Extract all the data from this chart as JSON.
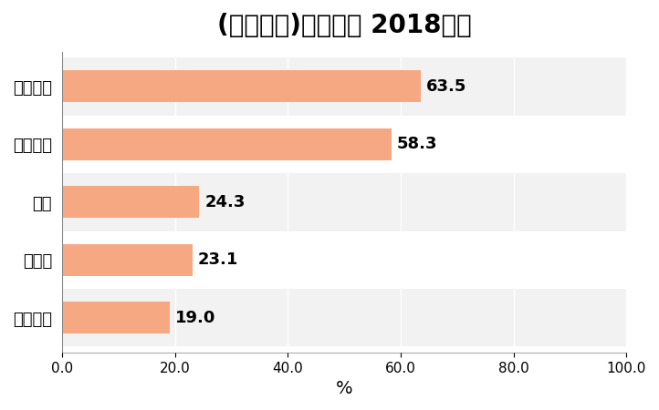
{
  "title": "(総合商社)資源割合 2018年度",
  "categories": [
    "住友商事",
    "伊藤忠",
    "丸紅",
    "三菱商事",
    "三井物産"
  ],
  "values": [
    19.0,
    23.1,
    24.3,
    58.3,
    63.5
  ],
  "bar_color": "#F5A882",
  "gap_color": "#D8D8D8",
  "left_wall_color": "#8C8C8C",
  "background_color": "#FFFFFF",
  "plot_bg_odd": "#F2F2F2",
  "plot_bg_even": "#FFFFFF",
  "label_color": "#000000",
  "xlabel": "%",
  "xlim": [
    0,
    100
  ],
  "xticks": [
    0.0,
    20.0,
    40.0,
    60.0,
    80.0,
    100.0
  ],
  "title_fontsize": 20,
  "ylabel_fontsize": 14,
  "value_fontsize": 13
}
